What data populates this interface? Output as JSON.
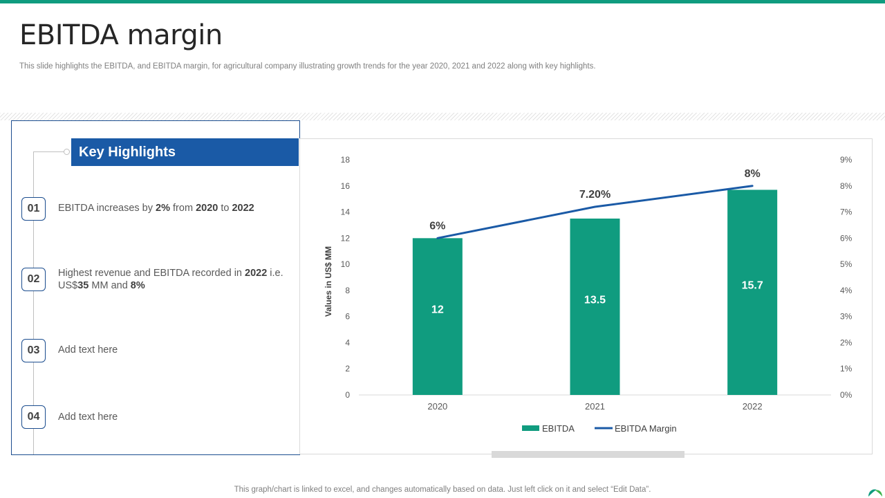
{
  "page": {
    "title": "EBITDA margin",
    "subtitle": "This slide highlights the EBITDA,  and EBITDA  margin, for agricultural company illustrating growth trends for the year  2020, 2021 and 2022 along with key  highlights.",
    "footnote": "This graph/chart is linked to excel,  and changes automatically based on data. Just left click on it and select “Edit Data”.",
    "colors": {
      "accent": "#109c7f",
      "banner": "#1a5aa6",
      "border": "#1a4c8e",
      "line": "#1a5aa6"
    }
  },
  "highlights": {
    "heading": "Key Highlights",
    "items": [
      {
        "num": "01",
        "parts": [
          [
            "EBITDA increases by ",
            false
          ],
          [
            "2%",
            true
          ],
          [
            " from ",
            false
          ],
          [
            "2020",
            true
          ],
          [
            " to  ",
            false
          ],
          [
            "2022",
            true
          ]
        ]
      },
      {
        "num": "02",
        "parts": [
          [
            "Highest revenue and EBITDA recorded in ",
            false
          ],
          [
            "2022",
            true
          ],
          [
            " i.e. US$",
            false
          ],
          [
            "35",
            true
          ],
          [
            " MM  and ",
            false
          ],
          [
            "8%",
            true
          ]
        ]
      },
      {
        "num": "03",
        "parts": [
          [
            "Add text here",
            false
          ]
        ]
      },
      {
        "num": "04",
        "parts": [
          [
            "Add text here",
            false
          ]
        ]
      }
    ]
  },
  "chart_data": {
    "type": "bar",
    "categories": [
      "2020",
      "2021",
      "2022"
    ],
    "series": [
      {
        "name": "EBITDA",
        "type": "bar",
        "axis": "left",
        "values": [
          12,
          13.5,
          15.7
        ],
        "labels": [
          "12",
          "13.5",
          "15.7"
        ],
        "color": "#109c7f"
      },
      {
        "name": "EBITDA Margin",
        "type": "line",
        "axis": "right",
        "values": [
          6,
          7.2,
          8
        ],
        "labels": [
          "6%",
          "7.20%",
          "8%"
        ],
        "color": "#1a5aa6"
      }
    ],
    "ylabel": "Values in US$ MM",
    "ylim": [
      0,
      18
    ],
    "yticks": [
      "0",
      "2",
      "4",
      "6",
      "8",
      "10",
      "12",
      "14",
      "16",
      "18"
    ],
    "y2lim": [
      0,
      9
    ],
    "y2ticks": [
      "0%",
      "1%",
      "2%",
      "3%",
      "4%",
      "5%",
      "6%",
      "7%",
      "8%",
      "9%"
    ],
    "grid": false,
    "legend": "bottom"
  }
}
